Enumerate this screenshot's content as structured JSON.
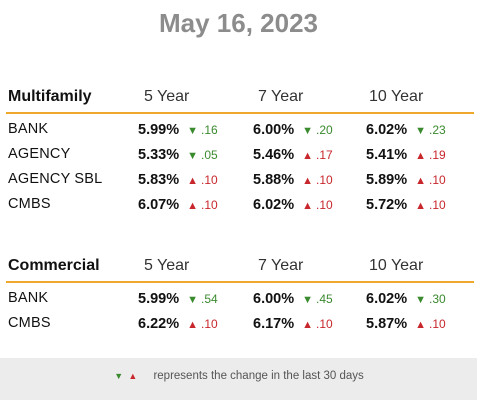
{
  "title": "May 16, 2023",
  "colors": {
    "accent": "#f0a82c",
    "down": "#3a8a2e",
    "up": "#c8272d"
  },
  "icons": {
    "down": "triangle-down-icon",
    "up": "triangle-up-icon"
  },
  "sections": [
    {
      "name": "Multifamily",
      "columns": [
        "5 Year",
        "7 Year",
        "10 Year"
      ],
      "rows": [
        {
          "label": "BANK",
          "cells": [
            {
              "rate": "5.99%",
              "dir": "down",
              "change": ".16"
            },
            {
              "rate": "6.00%",
              "dir": "down",
              "change": ".20"
            },
            {
              "rate": "6.02%",
              "dir": "down",
              "change": ".23"
            }
          ]
        },
        {
          "label": "AGENCY",
          "cells": [
            {
              "rate": "5.33%",
              "dir": "down",
              "change": ".05"
            },
            {
              "rate": "5.46%",
              "dir": "up",
              "change": ".17"
            },
            {
              "rate": "5.41%",
              "dir": "up",
              "change": ".19"
            }
          ]
        },
        {
          "label": "AGENCY SBL",
          "cells": [
            {
              "rate": "5.83%",
              "dir": "up",
              "change": ".10"
            },
            {
              "rate": "5.88%",
              "dir": "up",
              "change": ".10"
            },
            {
              "rate": "5.89%",
              "dir": "up",
              "change": ".10"
            }
          ]
        },
        {
          "label": "CMBS",
          "cells": [
            {
              "rate": "6.07%",
              "dir": "up",
              "change": ".10"
            },
            {
              "rate": "6.02%",
              "dir": "up",
              "change": ".10"
            },
            {
              "rate": "5.72%",
              "dir": "up",
              "change": ".10"
            }
          ]
        }
      ]
    },
    {
      "name": "Commercial",
      "columns": [
        "5 Year",
        "7 Year",
        "10 Year"
      ],
      "rows": [
        {
          "label": "BANK",
          "cells": [
            {
              "rate": "5.99%",
              "dir": "down",
              "change": ".54"
            },
            {
              "rate": "6.00%",
              "dir": "down",
              "change": ".45"
            },
            {
              "rate": "6.02%",
              "dir": "down",
              "change": ".30"
            }
          ]
        },
        {
          "label": "CMBS",
          "cells": [
            {
              "rate": "6.22%",
              "dir": "up",
              "change": ".10"
            },
            {
              "rate": "6.17%",
              "dir": "up",
              "change": ".10"
            },
            {
              "rate": "5.87%",
              "dir": "up",
              "change": ".10"
            }
          ]
        }
      ]
    }
  ],
  "footer": {
    "text": "represents the change in the last 30 days"
  }
}
